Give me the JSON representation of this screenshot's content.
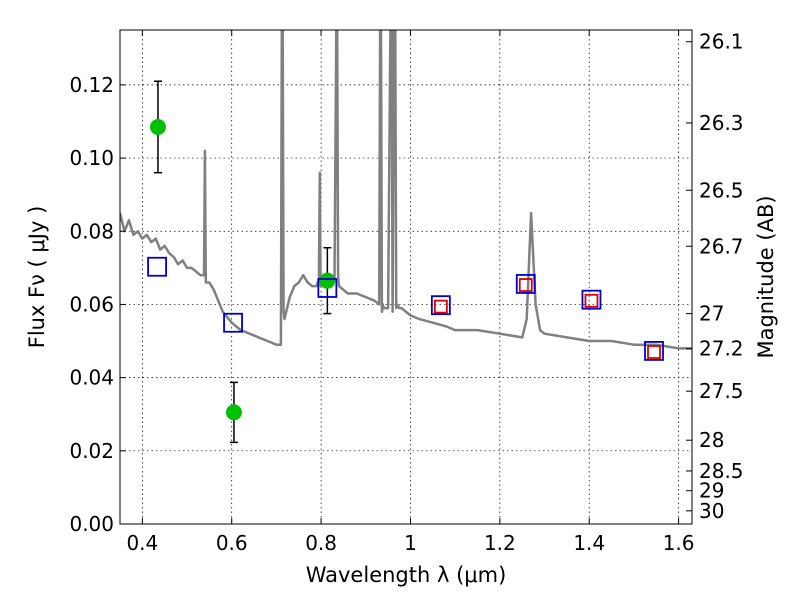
{
  "chart_data": {
    "type": "scatter",
    "title": "",
    "xlabel": "Wavelength  λ (μm)",
    "ylabel": "Flux  Fν  ( μJy )",
    "y2label": "Magnitude (AB)",
    "xlim": [
      0.35,
      1.63
    ],
    "ylim": [
      0.0,
      0.135
    ],
    "grid": true,
    "x_ticks": [
      0.4,
      0.6,
      0.8,
      1.0,
      1.2,
      1.4,
      1.6
    ],
    "x_tick_labels": [
      "0.4",
      "0.6",
      "0.8",
      "1",
      "1.2",
      "1.4",
      "1.6"
    ],
    "y_ticks": [
      0.0,
      0.02,
      0.04,
      0.06,
      0.08,
      0.1,
      0.12
    ],
    "y_tick_labels": [
      "0.00",
      "0.02",
      "0.04",
      "0.06",
      "0.08",
      "0.10",
      "0.12"
    ],
    "y2_ticks": [
      {
        "label": "26.1",
        "flux": 0.1318
      },
      {
        "label": "26.3",
        "flux": 0.1096
      },
      {
        "label": "26.5",
        "flux": 0.0912
      },
      {
        "label": "26.7",
        "flux": 0.0759
      },
      {
        "label": "27",
        "flux": 0.0575
      },
      {
        "label": "27.2",
        "flux": 0.0479
      },
      {
        "label": "27.5",
        "flux": 0.0363
      },
      {
        "label": "28",
        "flux": 0.0229
      },
      {
        "label": "28.5",
        "flux": 0.0145
      },
      {
        "label": "29",
        "flux": 0.0091
      },
      {
        "label": "30",
        "flux": 0.0036
      }
    ],
    "series": [
      {
        "marker": "line",
        "color": "#808080",
        "x": [
          0.35,
          0.36,
          0.37,
          0.38,
          0.39,
          0.4,
          0.41,
          0.42,
          0.43,
          0.44,
          0.45,
          0.46,
          0.47,
          0.48,
          0.49,
          0.5,
          0.51,
          0.52,
          0.53,
          0.538,
          0.54,
          0.542,
          0.55,
          0.56,
          0.58,
          0.6,
          0.62,
          0.64,
          0.66,
          0.68,
          0.7,
          0.71,
          0.712,
          0.714,
          0.716,
          0.718,
          0.72,
          0.73,
          0.74,
          0.75,
          0.76,
          0.77,
          0.78,
          0.79,
          0.795,
          0.797,
          0.799,
          0.8,
          0.81,
          0.82,
          0.825,
          0.83,
          0.834,
          0.836,
          0.838,
          0.84,
          0.85,
          0.86,
          0.88,
          0.9,
          0.92,
          0.93,
          0.932,
          0.934,
          0.936,
          0.938,
          0.94,
          0.95,
          0.955,
          0.958,
          0.96,
          0.963,
          0.966,
          0.968,
          0.97,
          0.975,
          0.98,
          1.0,
          1.02,
          1.05,
          1.08,
          1.1,
          1.15,
          1.2,
          1.25,
          1.26,
          1.27,
          1.28,
          1.29,
          1.3,
          1.35,
          1.4,
          1.45,
          1.5,
          1.55,
          1.6,
          1.63
        ],
        "y": [
          0.085,
          0.08,
          0.083,
          0.079,
          0.08,
          0.078,
          0.079,
          0.077,
          0.078,
          0.075,
          0.076,
          0.074,
          0.073,
          0.071,
          0.072,
          0.07,
          0.07,
          0.069,
          0.068,
          0.068,
          0.102,
          0.066,
          0.066,
          0.064,
          0.058,
          0.055,
          0.053,
          0.052,
          0.051,
          0.05,
          0.049,
          0.049,
          0.135,
          0.135,
          0.058,
          0.056,
          0.057,
          0.062,
          0.065,
          0.066,
          0.068,
          0.066,
          0.065,
          0.065,
          0.067,
          0.096,
          0.065,
          0.066,
          0.066,
          0.065,
          0.066,
          0.067,
          0.135,
          0.135,
          0.068,
          0.065,
          0.064,
          0.063,
          0.063,
          0.062,
          0.061,
          0.06,
          0.135,
          0.135,
          0.058,
          0.06,
          0.059,
          0.059,
          0.135,
          0.135,
          0.058,
          0.135,
          0.135,
          0.059,
          0.06,
          0.059,
          0.059,
          0.057,
          0.056,
          0.055,
          0.054,
          0.053,
          0.053,
          0.052,
          0.051,
          0.056,
          0.085,
          0.06,
          0.053,
          0.052,
          0.051,
          0.05,
          0.05,
          0.049,
          0.049,
          0.048,
          0.048
        ]
      },
      {
        "marker": "circle",
        "color": "#00c000",
        "x": [
          0.435,
          0.605,
          0.814
        ],
        "y": [
          0.1085,
          0.0305,
          0.0665
        ],
        "yerr": [
          0.0125,
          0.0082,
          0.009
        ]
      },
      {
        "marker": "square-open",
        "color": "#0000cc",
        "x": [
          0.433,
          0.603,
          0.814,
          1.068,
          1.258,
          1.405,
          1.545
        ],
        "y": [
          0.0703,
          0.055,
          0.0645,
          0.0598,
          0.0656,
          0.0613,
          0.0473
        ]
      },
      {
        "marker": "square-open",
        "color": "#dd0000",
        "x": [
          1.068,
          1.258,
          1.405,
          1.545
        ],
        "y": [
          0.0594,
          0.0653,
          0.061,
          0.047
        ]
      }
    ]
  }
}
